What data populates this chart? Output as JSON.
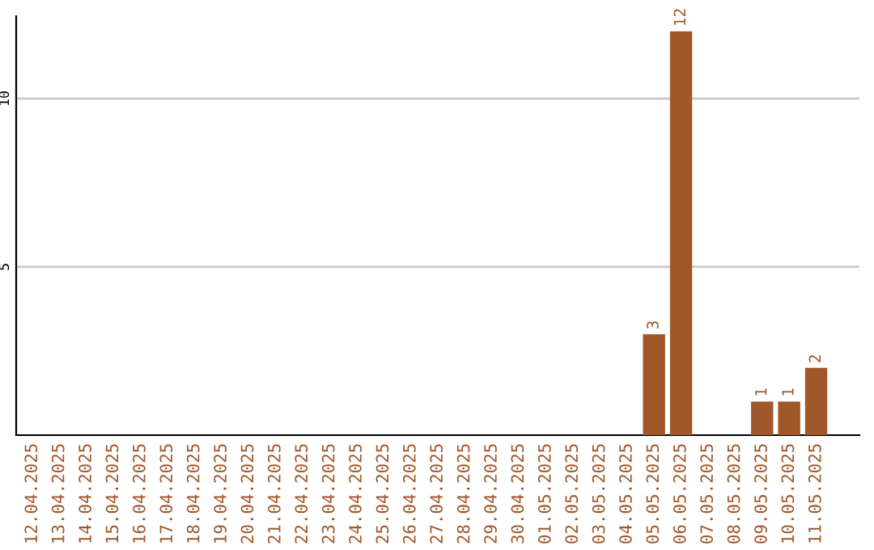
{
  "chart_data": {
    "type": "bar",
    "categories": [
      "12.04.2025",
      "13.04.2025",
      "14.04.2025",
      "15.04.2025",
      "16.04.2025",
      "17.04.2025",
      "18.04.2025",
      "19.04.2025",
      "20.04.2025",
      "21.04.2025",
      "22.04.2025",
      "23.04.2025",
      "24.04.2025",
      "25.04.2025",
      "26.04.2025",
      "27.04.2025",
      "28.04.2025",
      "29.04.2025",
      "30.04.2025",
      "01.05.2025",
      "02.05.2025",
      "03.05.2025",
      "04.05.2025",
      "05.05.2025",
      "06.05.2025",
      "07.05.2025",
      "08.05.2025",
      "09.05.2025",
      "10.05.2025",
      "11.05.2025"
    ],
    "values": [
      0,
      0,
      0,
      0,
      0,
      0,
      0,
      0,
      0,
      0,
      0,
      0,
      0,
      0,
      0,
      0,
      0,
      0,
      0,
      0,
      0,
      0,
      0,
      3,
      12,
      0,
      0,
      1,
      1,
      2
    ],
    "value_labels": [
      null,
      null,
      null,
      null,
      null,
      null,
      null,
      null,
      null,
      null,
      null,
      null,
      null,
      null,
      null,
      null,
      null,
      null,
      null,
      null,
      null,
      null,
      null,
      "3",
      "12",
      null,
      null,
      "1",
      "1",
      "2"
    ],
    "color": "#a0572a",
    "ylim": [
      0,
      12.45
    ],
    "yticks": [
      5,
      10
    ],
    "grid": "y"
  }
}
